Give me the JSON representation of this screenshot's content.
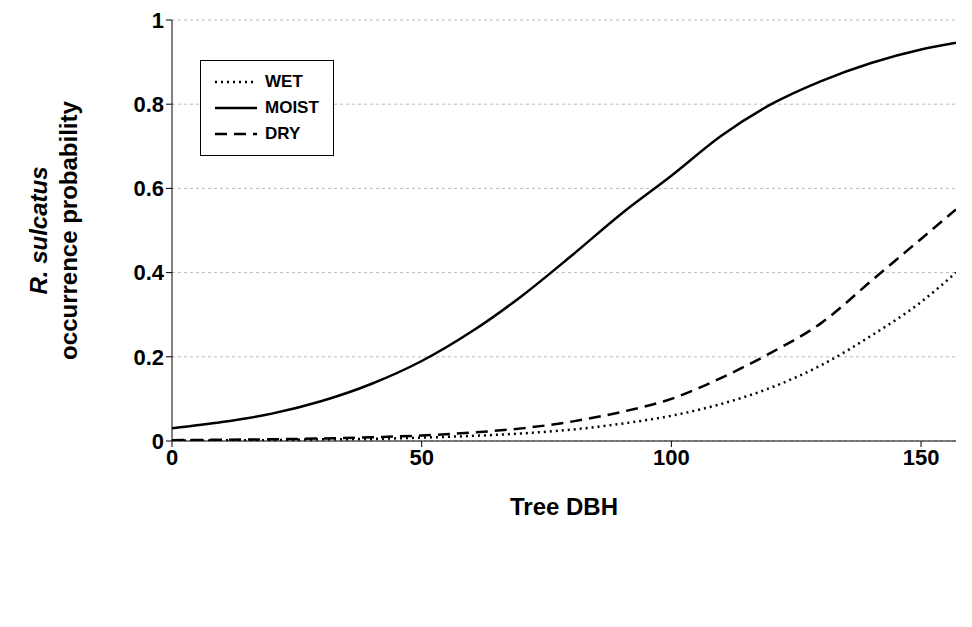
{
  "chart_data": {
    "type": "line",
    "xlabel": "Tree DBH",
    "ylabel": [
      "R. sulcatus",
      "occurrence probability"
    ],
    "x": [
      0,
      10,
      20,
      30,
      40,
      50,
      60,
      70,
      80,
      90,
      100,
      110,
      120,
      130,
      140,
      150,
      157
    ],
    "series": [
      {
        "name": "WET",
        "color": "#000000",
        "line_style": "dotted",
        "values": [
          0.001,
          0.0015,
          0.002,
          0.004,
          0.005,
          0.008,
          0.012,
          0.018,
          0.027,
          0.041,
          0.06,
          0.088,
          0.127,
          0.18,
          0.25,
          0.33,
          0.4
        ]
      },
      {
        "name": "MOIST",
        "color": "#000000",
        "line_style": "solid",
        "values": [
          0.03,
          0.045,
          0.065,
          0.095,
          0.136,
          0.19,
          0.26,
          0.344,
          0.44,
          0.54,
          0.63,
          0.725,
          0.8,
          0.855,
          0.898,
          0.93,
          0.946
        ]
      },
      {
        "name": "DRY",
        "color": "#000000",
        "line_style": "dashed",
        "values": [
          0.002,
          0.003,
          0.004,
          0.006,
          0.009,
          0.013,
          0.02,
          0.03,
          0.046,
          0.069,
          0.1,
          0.15,
          0.21,
          0.28,
          0.38,
          0.48,
          0.55
        ]
      }
    ],
    "xlim": [
      0,
      157
    ],
    "xticks": [
      0,
      50,
      100,
      150
    ],
    "ylim": [
      0,
      1
    ],
    "yticks": [
      0,
      0.2,
      0.4,
      0.6,
      0.8,
      1
    ],
    "grid": true,
    "legend": "upper left"
  }
}
